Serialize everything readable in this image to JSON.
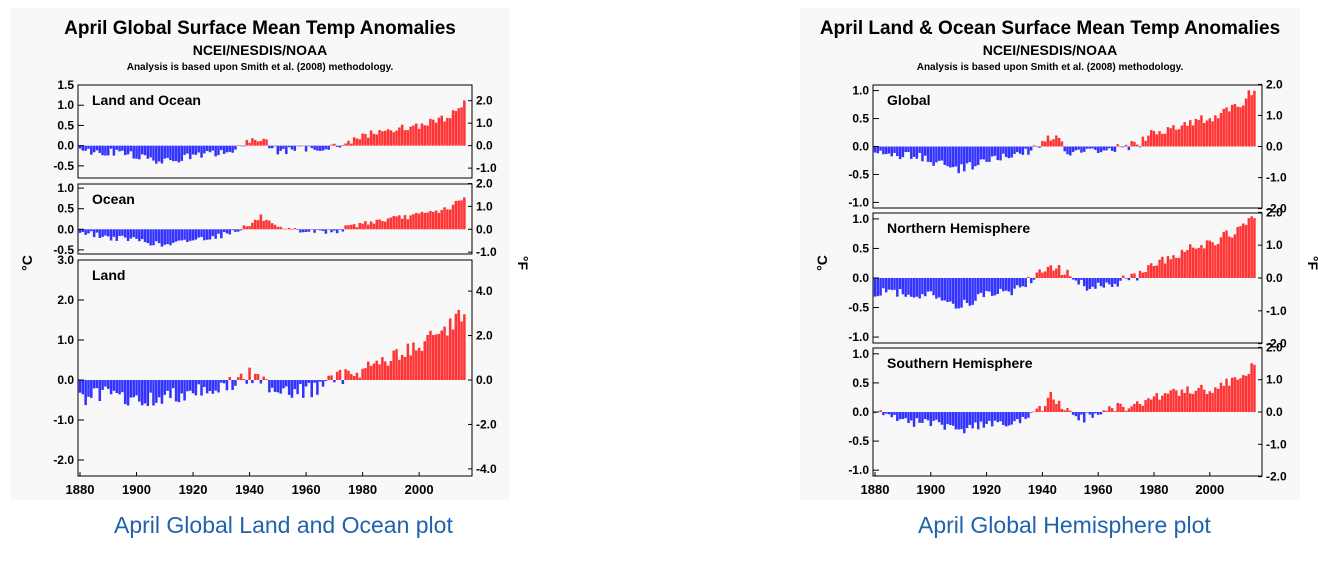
{
  "figures": [
    {
      "title": "April Global Surface Mean Temp Anomalies",
      "subtitle": "NCEI/NESDIS/NOAA",
      "note": "Analysis is based upon Smith et al. (2008) methodology.",
      "caption": "April Global Land and Ocean plot",
      "left_unit": "°C",
      "right_unit": "°F"
    },
    {
      "title": "April Land & Ocean Surface Mean Temp Anomalies",
      "subtitle": "NCEI/NESDIS/NOAA",
      "note": "Analysis is based upon Smith et al. (2008) methodology.",
      "caption": "April Global Hemisphere plot",
      "left_unit": "°C",
      "right_unit": "°F"
    }
  ],
  "colors": {
    "positive": "#ff3333",
    "negative": "#3333ff",
    "caption_link": "#1f62ad",
    "axis": "#000000"
  },
  "chart_data": [
    {
      "type": "bar",
      "x_range": [
        1880,
        2018
      ],
      "x_ticks": [
        "1880",
        "1900",
        "1920",
        "1940",
        "1960",
        "1980",
        "2000"
      ],
      "panels": [
        {
          "label": "Land and Ocean",
          "ylim": [
            -0.8,
            1.5
          ],
          "yticks": [
            "1.5",
            "1.0",
            "0.5",
            "0.0",
            "-0.5"
          ],
          "yticks_f": [
            "2.0",
            "1.0",
            "0.0",
            "-1.0"
          ],
          "anchors": [
            [
              1880,
              -0.1
            ],
            [
              1885,
              -0.15
            ],
            [
              1895,
              -0.17
            ],
            [
              1905,
              -0.35
            ],
            [
              1910,
              -0.4
            ],
            [
              1920,
              -0.25
            ],
            [
              1930,
              -0.18
            ],
            [
              1937,
              -0.05
            ],
            [
              1940,
              0.1
            ],
            [
              1944,
              0.2
            ],
            [
              1950,
              -0.15
            ],
            [
              1955,
              -0.1
            ],
            [
              1965,
              -0.05
            ],
            [
              1975,
              0.05
            ],
            [
              1980,
              0.25
            ],
            [
              1990,
              0.4
            ],
            [
              2000,
              0.5
            ],
            [
              2010,
              0.7
            ],
            [
              2016,
              1.05
            ]
          ]
        },
        {
          "label": "Ocean",
          "ylim": [
            -0.6,
            1.1
          ],
          "yticks": [
            "1.0",
            "0.5",
            "0.0",
            "-0.5"
          ],
          "yticks_f": [
            "2.0",
            "1.0",
            "0.0",
            "-1.0"
          ],
          "anchors": [
            [
              1880,
              -0.05
            ],
            [
              1890,
              -0.2
            ],
            [
              1900,
              -0.25
            ],
            [
              1910,
              -0.4
            ],
            [
              1920,
              -0.25
            ],
            [
              1930,
              -0.15
            ],
            [
              1940,
              0.1
            ],
            [
              1944,
              0.3
            ],
            [
              1950,
              0.0
            ],
            [
              1960,
              -0.05
            ],
            [
              1970,
              -0.05
            ],
            [
              1980,
              0.15
            ],
            [
              1990,
              0.25
            ],
            [
              2000,
              0.35
            ],
            [
              2010,
              0.5
            ],
            [
              2016,
              0.75
            ]
          ]
        },
        {
          "label": "Land",
          "ylim": [
            -2.4,
            3.0
          ],
          "yticks": [
            "3.0",
            "2.0",
            "1.0",
            "0.0",
            "-1.0",
            "-2.0"
          ],
          "yticks_f": [
            "4.0",
            "2.0",
            "0.0",
            "-2.0",
            "-4.0"
          ],
          "anchors": [
            [
              1880,
              -0.5
            ],
            [
              1890,
              -0.35
            ],
            [
              1900,
              -0.55
            ],
            [
              1910,
              -0.45
            ],
            [
              1920,
              -0.25
            ],
            [
              1930,
              -0.2
            ],
            [
              1940,
              0.1
            ],
            [
              1950,
              -0.2
            ],
            [
              1960,
              -0.3
            ],
            [
              1970,
              0.0
            ],
            [
              1980,
              0.3
            ],
            [
              1990,
              0.55
            ],
            [
              2000,
              0.85
            ],
            [
              2010,
              1.3
            ],
            [
              2016,
              1.75
            ]
          ]
        }
      ]
    },
    {
      "type": "bar",
      "x_range": [
        1880,
        2018
      ],
      "x_ticks": [
        "1880",
        "1900",
        "1920",
        "1940",
        "1960",
        "1980",
        "2000"
      ],
      "panels": [
        {
          "label": "Global",
          "ylim": [
            -1.1,
            1.1
          ],
          "yticks": [
            "1.0",
            "0.5",
            "0.0",
            "-0.5",
            "-1.0"
          ],
          "yticks_f": [
            "2.0",
            "1.0",
            "0.0",
            "-1.0",
            "-2.0"
          ],
          "anchors": [
            [
              1880,
              -0.1
            ],
            [
              1885,
              -0.15
            ],
            [
              1895,
              -0.17
            ],
            [
              1905,
              -0.35
            ],
            [
              1910,
              -0.4
            ],
            [
              1920,
              -0.25
            ],
            [
              1930,
              -0.18
            ],
            [
              1937,
              -0.05
            ],
            [
              1940,
              0.1
            ],
            [
              1944,
              0.2
            ],
            [
              1950,
              -0.15
            ],
            [
              1955,
              -0.1
            ],
            [
              1965,
              -0.05
            ],
            [
              1975,
              0.05
            ],
            [
              1980,
              0.25
            ],
            [
              1990,
              0.4
            ],
            [
              2000,
              0.5
            ],
            [
              2010,
              0.7
            ],
            [
              2016,
              1.05
            ]
          ]
        },
        {
          "label": "Northern Hemisphere",
          "ylim": [
            -1.1,
            1.1
          ],
          "yticks": [
            "1.0",
            "0.5",
            "0.0",
            "-0.5",
            "-1.0"
          ],
          "yticks_f": [
            "2.0",
            "1.0",
            "0.0",
            "-1.0",
            "-2.0"
          ],
          "anchors": [
            [
              1880,
              -0.25
            ],
            [
              1890,
              -0.25
            ],
            [
              1900,
              -0.3
            ],
            [
              1910,
              -0.45
            ],
            [
              1920,
              -0.3
            ],
            [
              1930,
              -0.2
            ],
            [
              1940,
              0.1
            ],
            [
              1945,
              0.2
            ],
            [
              1955,
              -0.15
            ],
            [
              1965,
              -0.1
            ],
            [
              1975,
              0.05
            ],
            [
              1980,
              0.2
            ],
            [
              1990,
              0.45
            ],
            [
              2000,
              0.6
            ],
            [
              2010,
              0.8
            ],
            [
              2016,
              1.05
            ]
          ]
        },
        {
          "label": "Southern Hemisphere",
          "ylim": [
            -1.1,
            1.1
          ],
          "yticks": [
            "1.0",
            "0.5",
            "0.0",
            "-0.5",
            "-1.0"
          ],
          "yticks_f": [
            "2.0",
            "1.0",
            "0.0",
            "-1.0",
            "-2.0"
          ],
          "anchors": [
            [
              1880,
              0.0
            ],
            [
              1890,
              -0.15
            ],
            [
              1900,
              -0.2
            ],
            [
              1910,
              -0.3
            ],
            [
              1920,
              -0.2
            ],
            [
              1930,
              -0.2
            ],
            [
              1940,
              0.05
            ],
            [
              1943,
              0.3
            ],
            [
              1948,
              0.0
            ],
            [
              1955,
              -0.1
            ],
            [
              1965,
              0.05
            ],
            [
              1975,
              0.15
            ],
            [
              1980,
              0.25
            ],
            [
              1990,
              0.35
            ],
            [
              2000,
              0.4
            ],
            [
              2010,
              0.55
            ],
            [
              2016,
              0.8
            ]
          ]
        }
      ]
    }
  ]
}
